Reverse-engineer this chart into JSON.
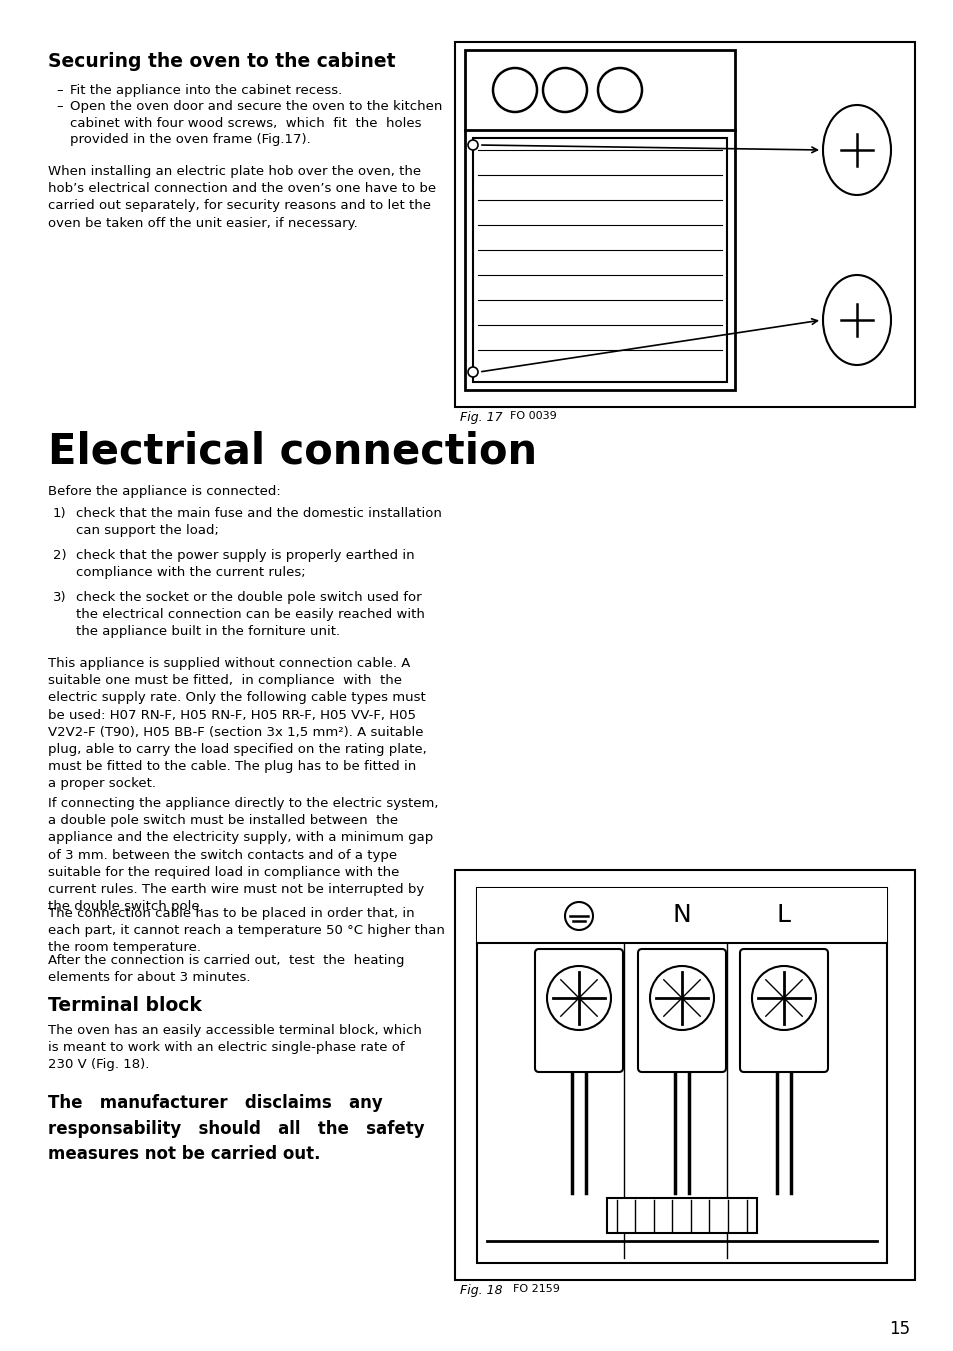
{
  "bg_color": "#ffffff",
  "text_color": "#000000",
  "page_number": "15",
  "section1_title": "Securing the oven to the cabinet",
  "bullet1": "Fit the appliance into the cabinet recess.",
  "bullet2": "Open the oven door and secure the oven to the kitchen\ncabinet with four wood screws,  which  fit  the  holes\nprovided in the oven frame (Fig.17).",
  "section1_para": "When installing an electric plate hob over the oven, the\nhob’s electrical connection and the oven’s one have to be\ncarried out separately, for security reasons and to let the\noven be taken off the unit easier, if necessary.",
  "fig17_label": "Fig. 17",
  "fig17_code": "FO 0039",
  "section2_title": "Electrical connection",
  "section2_intro": "Before the appliance is connected:",
  "item1": "check that the main fuse and the domestic installation\ncan support the load;",
  "item2": "check that the power supply is properly earthed in\ncompliance with the current rules;",
  "item3": "check the socket or the double pole switch used for\nthe electrical connection can be easily reached with\nthe appliance built in the forniture unit.",
  "para1": "This appliance is supplied without connection cable. A\nsuitable one must be fitted,  in compliance  with  the\nelectric supply rate. Only the following cable types must\nbe used: H07 RN-F, H05 RN-F, H05 RR-F, H05 VV-F, H05\nV2V2-F (T90), H05 BB-F (section 3x 1,5 mm²). A suitable\nplug, able to carry the load specified on the rating plate,\nmust be fitted to the cable. The plug has to be fitted in\na proper socket.",
  "para2": "If connecting the appliance directly to the electric system,\na double pole switch must be installed between  the\nappliance and the electricity supply, with a minimum gap\nof 3 mm. between the switch contacts and of a type\nsuitable for the required load in compliance with the\ncurrent rules. The earth wire must not be interrupted by\nthe double switch pole.",
  "para3": "The connection cable has to be placed in order that, in\neach part, it cannot reach a temperature 50 °C higher than\nthe room temperature.",
  "para4": "After the connection is carried out,  test  the  heating\nelements for about 3 minutes.",
  "section3_title": "Terminal block",
  "section3_para": "The oven has an easily accessible terminal block, which\nis meant to work with an electric single-phase rate of\n230 V (Fig. 18).",
  "fig18_label": "Fig. 18",
  "fig18_code": "FO 2159",
  "disclaimer": "The   manufacturer   disclaims   any\nresponsability   should   all   the   safety\nmeasures not be carried out."
}
